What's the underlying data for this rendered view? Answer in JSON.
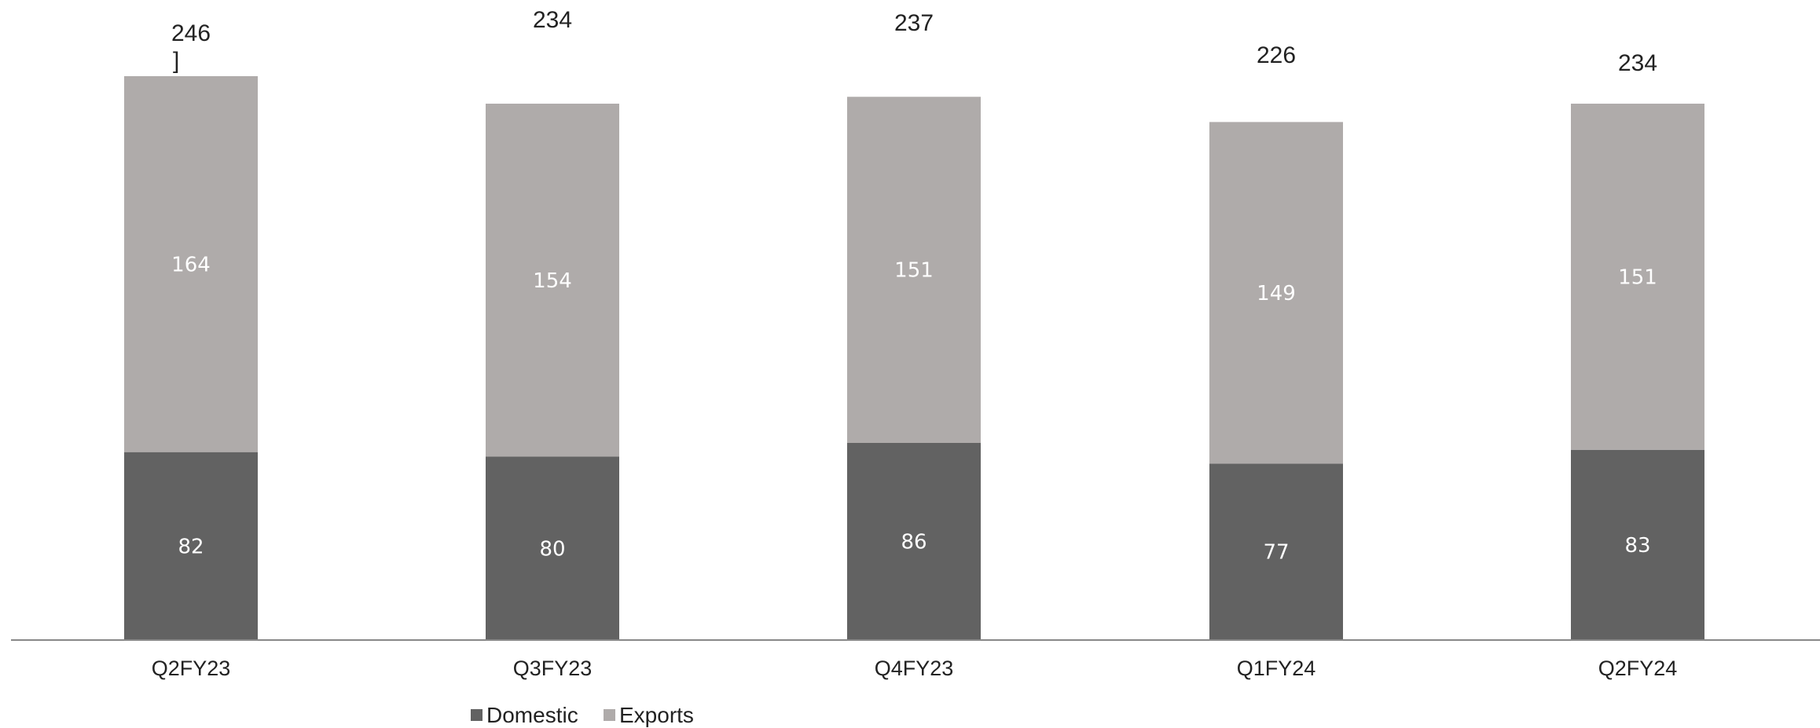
{
  "chart_data": {
    "type": "bar",
    "stacked": true,
    "categories": [
      "Q2FY23",
      "Q3FY23",
      "Q4FY23",
      "Q1FY24",
      "Q2FY24"
    ],
    "series": [
      {
        "name": "Domestic",
        "values": [
          82,
          80,
          86,
          77,
          83
        ],
        "color": "#626262"
      },
      {
        "name": "Exports",
        "values": [
          164,
          154,
          151,
          149,
          151
        ],
        "color": "#afabaa"
      }
    ],
    "totals": [
      "246",
      "234",
      "237",
      "226",
      "234"
    ],
    "total_note": "]",
    "title": "",
    "xlabel": "",
    "ylabel": "",
    "ylim": [
      0,
      246
    ],
    "grid": false,
    "legend": "bottom-left",
    "axis_color": "#888888"
  }
}
